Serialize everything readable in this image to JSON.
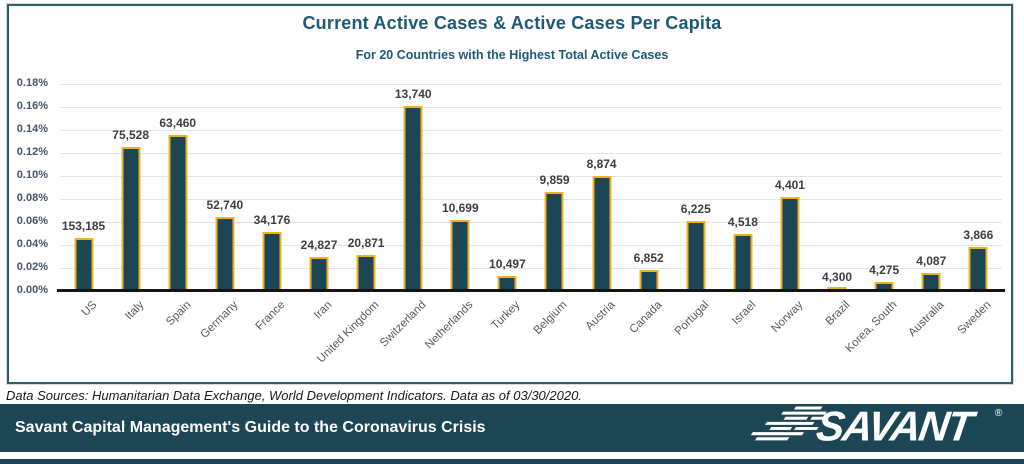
{
  "chart_data": {
    "type": "bar",
    "title": "Current Active Cases & Active Cases Per Capita",
    "subtitle": "For 20 Countries with the Highest Total Active Cases",
    "categories": [
      "US",
      "Italy",
      "Spain",
      "Germany",
      "France",
      "Iran",
      "United Kingdom",
      "Switzerland",
      "Netherlands",
      "Turkey",
      "Belgium",
      "Austria",
      "Canada",
      "Portugal",
      "Israel",
      "Norway",
      "Brazil",
      "Korea, South",
      "Australia",
      "Sweden"
    ],
    "series": [
      {
        "name": "Active Cases Per Capita (%)",
        "values": [
          0.046,
          0.125,
          0.136,
          0.064,
          0.051,
          0.03,
          0.031,
          0.161,
          0.062,
          0.013,
          0.086,
          0.1,
          0.018,
          0.061,
          0.05,
          0.082,
          0.002,
          0.008,
          0.016,
          0.038
        ]
      }
    ],
    "bar_labels": [
      "153,185",
      "75,528",
      "63,460",
      "52,740",
      "34,176",
      "24,827",
      "20,871",
      "13,740",
      "10,699",
      "10,497",
      "9,859",
      "8,874",
      "6,852",
      "6,225",
      "4,518",
      "4,401",
      "4,300",
      "4,275",
      "4,087",
      "3,866"
    ],
    "xlabel": "",
    "ylabel": "",
    "ylim": [
      0,
      0.18
    ],
    "ytick_labels": [
      "0.18%",
      "0.16%",
      "0.14%",
      "0.12%",
      "0.10%",
      "0.08%",
      "0.06%",
      "0.04%",
      "0.02%",
      "0.00%"
    ],
    "grid": true,
    "legend": "none"
  },
  "colors": {
    "bar_fill": "#1c4654",
    "bar_border": "#efb024",
    "title_text": "#1d5a78",
    "footer_background": "#1c4654",
    "gridline": "#e4e4e4"
  },
  "footnote": "Data Sources: Humanitarian Data Exchange, World Development Indicators. Data as of 03/30/2020.",
  "footer": {
    "text": "Savant Capital Management's Guide to the Coronavirus Crisis",
    "brand": "SAVANT",
    "registered_mark": "®"
  }
}
